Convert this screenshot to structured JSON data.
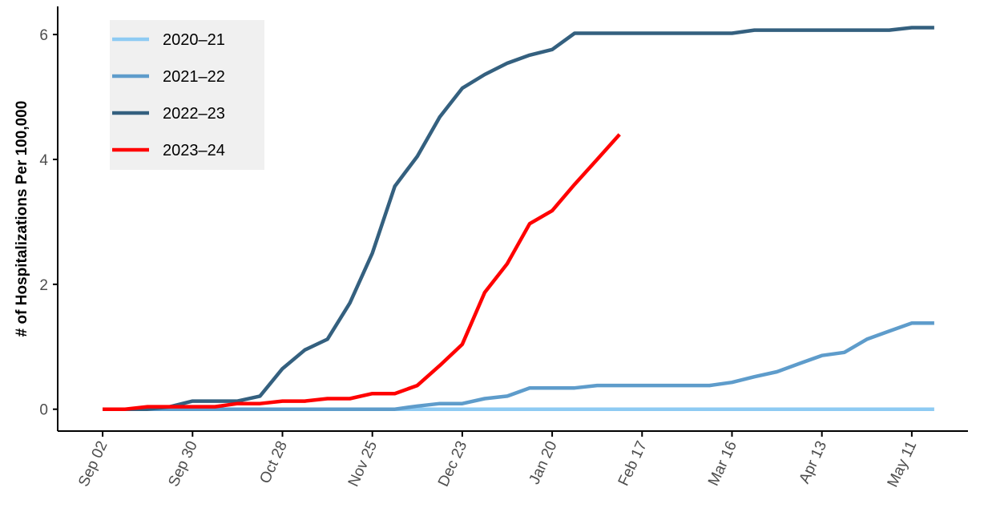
{
  "chart_data": {
    "type": "line",
    "xlabel": "",
    "ylabel": "# of Hospitalizations Per 100,000",
    "x_tick_labels": [
      "Sep 02",
      "Sep 30",
      "Oct 28",
      "Nov 25",
      "Dec 23",
      "Jan 20",
      "Feb 17",
      "Mar 16",
      "Apr 13",
      "May 11"
    ],
    "x_tick_weeks": [
      0,
      4,
      8,
      12,
      16,
      20,
      24,
      28,
      32,
      36
    ],
    "xlim": [
      -2,
      38.5
    ],
    "y_ticks": [
      0,
      2,
      4,
      6
    ],
    "ylim": [
      -0.35,
      6.45
    ],
    "grid": false,
    "legend_position": "top-left",
    "series": [
      {
        "name": "2020–21",
        "color": "#8ecbf3",
        "x": [
          0,
          1,
          2,
          3,
          4,
          5,
          6,
          7,
          8,
          9,
          10,
          11,
          12,
          13,
          14,
          15,
          16,
          17,
          18,
          19,
          20,
          21,
          22,
          23,
          24,
          25,
          26,
          27,
          28,
          29,
          30,
          31,
          32,
          33,
          34,
          35,
          36,
          37
        ],
        "y": [
          0,
          0,
          0,
          0,
          0,
          0,
          0,
          0,
          0,
          0,
          0,
          0,
          0,
          0,
          0,
          0,
          0,
          0,
          0,
          0,
          0,
          0,
          0,
          0,
          0,
          0,
          0,
          0,
          0,
          0,
          0,
          0,
          0,
          0,
          0,
          0,
          0,
          0
        ]
      },
      {
        "name": "2021–22",
        "color": "#5e9ccb",
        "x": [
          0,
          1,
          2,
          3,
          4,
          5,
          6,
          7,
          8,
          9,
          10,
          11,
          12,
          13,
          14,
          15,
          16,
          17,
          18,
          19,
          20,
          21,
          22,
          23,
          24,
          25,
          26,
          27,
          28,
          29,
          30,
          31,
          32,
          33,
          34,
          35,
          36,
          37
        ],
        "y": [
          0,
          0,
          0,
          0,
          0,
          0,
          0,
          0,
          0,
          0,
          0,
          0,
          0,
          0,
          0.05,
          0.09,
          0.09,
          0.17,
          0.21,
          0.34,
          0.34,
          0.34,
          0.38,
          0.38,
          0.38,
          0.38,
          0.38,
          0.38,
          0.43,
          0.52,
          0.6,
          0.73,
          0.86,
          0.91,
          1.12,
          1.25,
          1.38,
          1.38
        ]
      },
      {
        "name": "2022–23",
        "color": "#34607f",
        "x": [
          0,
          1,
          2,
          3,
          4,
          5,
          6,
          7,
          8,
          9,
          10,
          11,
          12,
          13,
          14,
          15,
          16,
          17,
          18,
          19,
          20,
          21,
          22,
          23,
          24,
          25,
          26,
          27,
          28,
          29,
          30,
          31,
          32,
          33,
          34,
          35,
          36,
          37
        ],
        "y": [
          0,
          0,
          0,
          0.04,
          0.13,
          0.13,
          0.13,
          0.21,
          0.65,
          0.95,
          1.12,
          1.7,
          2.5,
          3.57,
          4.05,
          4.68,
          5.14,
          5.36,
          5.54,
          5.67,
          5.76,
          6.02,
          6.02,
          6.02,
          6.02,
          6.02,
          6.02,
          6.02,
          6.02,
          6.07,
          6.07,
          6.07,
          6.07,
          6.07,
          6.07,
          6.07,
          6.11,
          6.11
        ]
      },
      {
        "name": "2023–24",
        "color": "#ff0000",
        "x": [
          0,
          1,
          2,
          3,
          4,
          5,
          6,
          7,
          8,
          9,
          10,
          11,
          12,
          13,
          14,
          15,
          16,
          17,
          18,
          19,
          20,
          21,
          22,
          23
        ],
        "y": [
          0,
          0,
          0.04,
          0.04,
          0.04,
          0.04,
          0.09,
          0.09,
          0.13,
          0.13,
          0.17,
          0.17,
          0.25,
          0.25,
          0.38,
          0.7,
          1.04,
          1.87,
          2.33,
          2.97,
          3.18,
          3.6,
          4.0,
          4.4
        ]
      }
    ]
  }
}
